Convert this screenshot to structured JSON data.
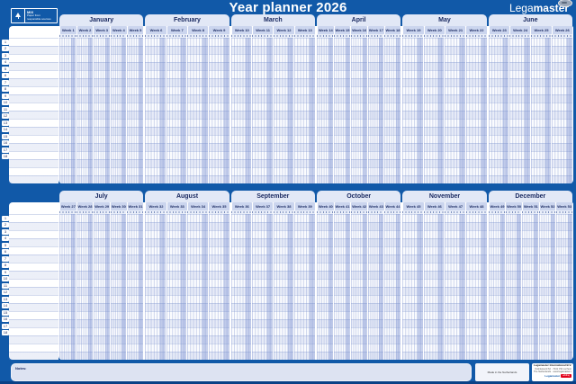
{
  "title": "Year planner 2026",
  "brand": {
    "light": "Lega",
    "bold": "master"
  },
  "fsc": {
    "lines": [
      "MIX",
      "Paper from",
      "responsible sources"
    ]
  },
  "week_label_prefix": "Week",
  "rows_per_half": 18,
  "halves": [
    {
      "months": [
        {
          "name": "January",
          "weeks": [
            1,
            2,
            3,
            4,
            5
          ]
        },
        {
          "name": "February",
          "weeks": [
            6,
            7,
            8,
            9
          ]
        },
        {
          "name": "March",
          "weeks": [
            10,
            11,
            12,
            13
          ]
        },
        {
          "name": "April",
          "weeks": [
            14,
            15,
            16,
            17,
            18
          ]
        },
        {
          "name": "May",
          "weeks": [
            19,
            20,
            21,
            22
          ]
        },
        {
          "name": "June",
          "weeks": [
            23,
            24,
            25,
            26
          ]
        }
      ]
    },
    {
      "months": [
        {
          "name": "July",
          "weeks": [
            27,
            28,
            29,
            30,
            31
          ]
        },
        {
          "name": "August",
          "weeks": [
            32,
            33,
            34,
            35
          ]
        },
        {
          "name": "September",
          "weeks": [
            36,
            37,
            38,
            39
          ]
        },
        {
          "name": "October",
          "weeks": [
            40,
            41,
            42,
            43,
            44
          ]
        },
        {
          "name": "November",
          "weeks": [
            45,
            46,
            47,
            48
          ]
        },
        {
          "name": "December",
          "weeks": [
            49,
            50,
            51,
            52,
            53
          ]
        }
      ]
    }
  ],
  "notes_label": "Notes:",
  "footer": {
    "made_in": "Made in the Netherlands",
    "company": "Legamaster International B.V.",
    "address_lines": [
      "Kwinkweerd 62 · 7241 CW Lochem",
      "The Netherlands · www.legamaster.com"
    ],
    "logo_text": "Legamaster",
    "logo_edding": "edding"
  },
  "colors": {
    "board_blue": "#1159a8",
    "tab_fill": "#e2e8f6",
    "week_header_fill": "#cbd5ee",
    "navy_text": "#17275f",
    "edding_red": "#e2001a"
  }
}
